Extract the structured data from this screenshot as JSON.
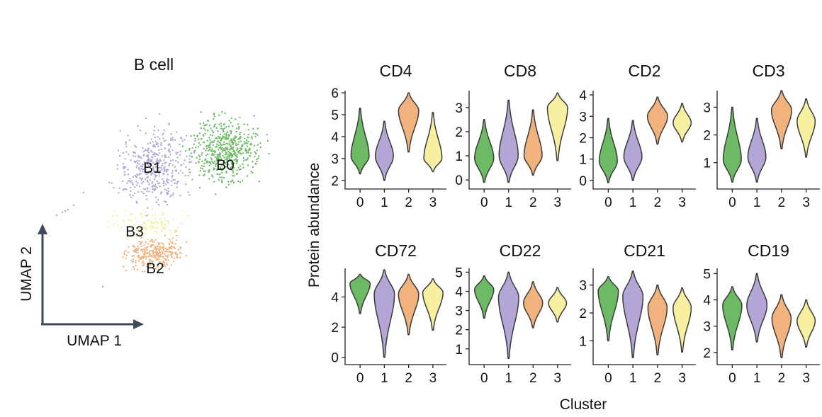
{
  "chart_data": [
    {
      "type": "scatter",
      "title": "B cell",
      "xlabel": "UMAP 1",
      "ylabel": "UMAP 2",
      "clusters": [
        {
          "label": "B0",
          "color": "#6cbb64"
        },
        {
          "label": "B1",
          "color": "#b3a6d6"
        },
        {
          "label": "B2",
          "color": "#f2b27e"
        },
        {
          "label": "B3",
          "color": "#f4f0a0"
        }
      ]
    },
    {
      "type": "violin",
      "xlabel": "Cluster",
      "ylabel": "Protein abundance",
      "categories": [
        "0",
        "1",
        "2",
        "3"
      ],
      "colors": [
        "#6cbb64",
        "#b3a6d6",
        "#f2b27e",
        "#f6f0a0"
      ],
      "panels": [
        {
          "title": "CD4",
          "yticks": [
            2,
            3,
            4,
            5,
            6
          ],
          "ylim": [
            1.8,
            6.1
          ],
          "violins": [
            {
              "min": 2.3,
              "max": 5.3,
              "center": 3.1,
              "width": 0.85
            },
            {
              "min": 2.0,
              "max": 4.7,
              "center": 3.1,
              "width": 0.85
            },
            {
              "min": 3.3,
              "max": 6.0,
              "center": 5.2,
              "width": 0.95
            },
            {
              "min": 2.4,
              "max": 5.1,
              "center": 3.0,
              "width": 0.85
            }
          ]
        },
        {
          "title": "CD8",
          "yticks": [
            0,
            1,
            2,
            3
          ],
          "ylim": [
            -0.2,
            3.7
          ],
          "violins": [
            {
              "min": -0.1,
              "max": 2.5,
              "center": 0.9,
              "width": 0.9
            },
            {
              "min": -0.1,
              "max": 3.3,
              "center": 1.0,
              "width": 0.9
            },
            {
              "min": 0.2,
              "max": 2.9,
              "center": 1.0,
              "width": 0.85
            },
            {
              "min": 0.8,
              "max": 3.6,
              "center": 3.0,
              "width": 0.95
            }
          ]
        },
        {
          "title": "CD2",
          "yticks": [
            0,
            1,
            2,
            3,
            4
          ],
          "ylim": [
            -0.2,
            4.2
          ],
          "violins": [
            {
              "min": -0.1,
              "max": 2.9,
              "center": 0.9,
              "width": 0.85
            },
            {
              "min": 0.0,
              "max": 2.8,
              "center": 1.1,
              "width": 0.85
            },
            {
              "min": 1.7,
              "max": 3.9,
              "center": 3.0,
              "width": 0.95
            },
            {
              "min": 1.8,
              "max": 3.6,
              "center": 2.7,
              "width": 0.85
            }
          ]
        },
        {
          "title": "CD3",
          "yticks": [
            1,
            2,
            3
          ],
          "ylim": [
            0.2,
            3.6
          ],
          "violins": [
            {
              "min": 0.3,
              "max": 3.0,
              "center": 1.1,
              "width": 0.85
            },
            {
              "min": 0.3,
              "max": 2.6,
              "center": 1.2,
              "width": 0.85
            },
            {
              "min": 1.5,
              "max": 3.6,
              "center": 2.9,
              "width": 0.95
            },
            {
              "min": 1.2,
              "max": 3.3,
              "center": 2.5,
              "width": 0.85
            }
          ]
        },
        {
          "title": "CD72",
          "yticks": [
            0,
            2,
            4
          ],
          "ylim": [
            -0.2,
            5.9
          ],
          "violins": [
            {
              "min": 2.9,
              "max": 5.5,
              "center": 4.9,
              "width": 0.95
            },
            {
              "min": 0.0,
              "max": 5.8,
              "center": 4.2,
              "width": 0.95
            },
            {
              "min": 1.5,
              "max": 5.5,
              "center": 4.2,
              "width": 0.95
            },
            {
              "min": 1.8,
              "max": 5.2,
              "center": 4.3,
              "width": 0.95
            }
          ]
        },
        {
          "title": "CD22",
          "yticks": [
            1,
            2,
            3,
            4,
            5
          ],
          "ylim": [
            0.4,
            5.2
          ],
          "violins": [
            {
              "min": 2.6,
              "max": 4.8,
              "center": 4.1,
              "width": 0.9
            },
            {
              "min": 0.5,
              "max": 5.0,
              "center": 3.7,
              "width": 0.95
            },
            {
              "min": 2.1,
              "max": 4.5,
              "center": 3.4,
              "width": 0.9
            },
            {
              "min": 2.4,
              "max": 4.2,
              "center": 3.4,
              "width": 0.85
            }
          ]
        },
        {
          "title": "CD21",
          "yticks": [
            1,
            2,
            3
          ],
          "ylim": [
            0.3,
            3.6
          ],
          "violins": [
            {
              "min": 1.0,
              "max": 3.3,
              "center": 2.8,
              "width": 0.95
            },
            {
              "min": 0.4,
              "max": 3.5,
              "center": 2.6,
              "width": 0.95
            },
            {
              "min": 0.5,
              "max": 3.0,
              "center": 2.2,
              "width": 0.9
            },
            {
              "min": 0.6,
              "max": 2.9,
              "center": 2.2,
              "width": 0.85
            }
          ]
        },
        {
          "title": "CD19",
          "yticks": [
            2,
            3,
            4,
            5
          ],
          "ylim": [
            1.7,
            5.2
          ],
          "violins": [
            {
              "min": 2.1,
              "max": 4.5,
              "center": 3.8,
              "width": 0.9
            },
            {
              "min": 2.4,
              "max": 5.0,
              "center": 3.8,
              "width": 0.95
            },
            {
              "min": 1.8,
              "max": 4.2,
              "center": 3.3,
              "width": 0.9
            },
            {
              "min": 2.2,
              "max": 4.0,
              "center": 3.2,
              "width": 0.85
            }
          ]
        }
      ]
    }
  ]
}
